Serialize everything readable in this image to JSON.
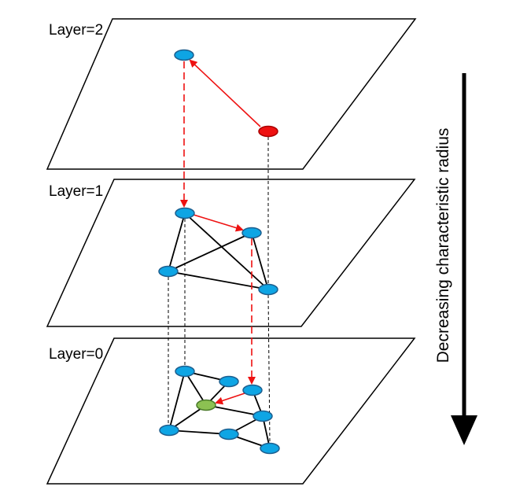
{
  "layers": [
    {
      "label": "Layer=2"
    },
    {
      "label": "Layer=1"
    },
    {
      "label": "Layer=0"
    }
  ],
  "axis_label": "Decreasing characteristic radius",
  "colors": {
    "node": "#0ea5e4",
    "node_stroke": "#1d5f8f",
    "entry_node": "#ee1111",
    "target_node": "#8cc152",
    "search_path": "#ee1111",
    "edge": "#000000"
  }
}
